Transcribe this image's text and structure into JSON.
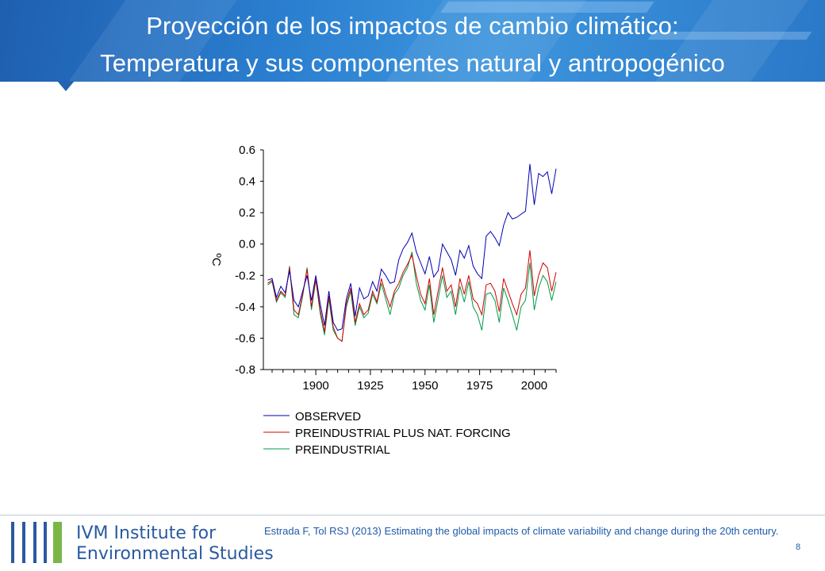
{
  "title": {
    "line1": "Proyección de los impactos de cambio climático:",
    "line2": "Temperatura y sus componentes natural y antropogénico"
  },
  "colors": {
    "header_blue": "#2b7fd0",
    "observed": "#0000b4",
    "natural": "#d40000",
    "preindustrial": "#009a44",
    "logo_green": "#7ab648",
    "text_blue": "#1e5aa8"
  },
  "chart_data": {
    "type": "line",
    "ylabel": "ºC",
    "xlabel": "",
    "title": "",
    "xlim": [
      1876,
      2010
    ],
    "ylim": [
      -0.8,
      0.6
    ],
    "yticks": [
      "0.6",
      "0.4",
      "0.2",
      "0.0",
      "-0.2",
      "-0.4",
      "-0.6",
      "-0.8"
    ],
    "xticks": [
      "1900",
      "1925",
      "1950",
      "1975",
      "2000"
    ],
    "legend_position": "bottom",
    "x": [
      1878,
      1880,
      1882,
      1884,
      1886,
      1888,
      1890,
      1892,
      1894,
      1896,
      1898,
      1900,
      1902,
      1904,
      1906,
      1908,
      1910,
      1912,
      1914,
      1916,
      1918,
      1920,
      1922,
      1924,
      1926,
      1928,
      1930,
      1932,
      1934,
      1936,
      1938,
      1940,
      1942,
      1944,
      1946,
      1948,
      1950,
      1952,
      1954,
      1956,
      1958,
      1960,
      1962,
      1964,
      1966,
      1968,
      1970,
      1972,
      1974,
      1976,
      1978,
      1980,
      1982,
      1984,
      1986,
      1988,
      1990,
      1992,
      1994,
      1996,
      1998,
      2000,
      2002,
      2004,
      2006,
      2008,
      2010
    ],
    "series": [
      {
        "name": "OBSERVED",
        "color": "#0000b4",
        "values": [
          -0.23,
          -0.22,
          -0.34,
          -0.27,
          -0.31,
          -0.17,
          -0.36,
          -0.4,
          -0.3,
          -0.2,
          -0.36,
          -0.2,
          -0.38,
          -0.52,
          -0.3,
          -0.5,
          -0.55,
          -0.54,
          -0.35,
          -0.25,
          -0.46,
          -0.28,
          -0.35,
          -0.33,
          -0.24,
          -0.3,
          -0.16,
          -0.2,
          -0.25,
          -0.24,
          -0.1,
          -0.03,
          0.01,
          0.07,
          -0.05,
          -0.12,
          -0.19,
          -0.08,
          -0.21,
          -0.17,
          0.0,
          -0.05,
          -0.1,
          -0.2,
          -0.04,
          -0.09,
          -0.01,
          -0.14,
          -0.19,
          -0.22,
          0.05,
          0.08,
          0.04,
          -0.01,
          0.12,
          0.2,
          0.16,
          0.17,
          0.19,
          0.21,
          0.51,
          0.25,
          0.45,
          0.43,
          0.46,
          0.32,
          0.48
        ]
      },
      {
        "name": "PREINDUSTRIAL PLUS NAT. FORCING",
        "color": "#d40000",
        "values": [
          -0.25,
          -0.23,
          -0.36,
          -0.3,
          -0.33,
          -0.15,
          -0.42,
          -0.45,
          -0.32,
          -0.16,
          -0.4,
          -0.22,
          -0.42,
          -0.56,
          -0.33,
          -0.53,
          -0.6,
          -0.62,
          -0.38,
          -0.28,
          -0.5,
          -0.38,
          -0.45,
          -0.42,
          -0.3,
          -0.37,
          -0.22,
          -0.32,
          -0.4,
          -0.3,
          -0.25,
          -0.18,
          -0.13,
          -0.07,
          -0.2,
          -0.32,
          -0.38,
          -0.22,
          -0.45,
          -0.3,
          -0.15,
          -0.3,
          -0.26,
          -0.4,
          -0.22,
          -0.32,
          -0.2,
          -0.35,
          -0.38,
          -0.45,
          -0.26,
          -0.25,
          -0.3,
          -0.43,
          -0.22,
          -0.3,
          -0.38,
          -0.45,
          -0.32,
          -0.28,
          -0.04,
          -0.33,
          -0.2,
          -0.12,
          -0.15,
          -0.3,
          -0.18
        ]
      },
      {
        "name": "PREINDUSTRIAL",
        "color": "#009a44",
        "values": [
          -0.26,
          -0.24,
          -0.37,
          -0.31,
          -0.34,
          -0.14,
          -0.45,
          -0.47,
          -0.33,
          -0.15,
          -0.42,
          -0.23,
          -0.44,
          -0.58,
          -0.35,
          -0.55,
          -0.6,
          -0.62,
          -0.4,
          -0.3,
          -0.52,
          -0.4,
          -0.47,
          -0.44,
          -0.32,
          -0.38,
          -0.25,
          -0.35,
          -0.45,
          -0.32,
          -0.28,
          -0.2,
          -0.15,
          -0.05,
          -0.25,
          -0.36,
          -0.42,
          -0.26,
          -0.5,
          -0.35,
          -0.2,
          -0.34,
          -0.3,
          -0.45,
          -0.27,
          -0.37,
          -0.24,
          -0.4,
          -0.45,
          -0.55,
          -0.32,
          -0.31,
          -0.36,
          -0.5,
          -0.28,
          -0.36,
          -0.45,
          -0.55,
          -0.4,
          -0.36,
          -0.12,
          -0.42,
          -0.28,
          -0.2,
          -0.24,
          -0.36,
          -0.24
        ]
      }
    ]
  },
  "logo": {
    "line1": "IVM Institute for",
    "line2": "Environmental Studies"
  },
  "citation": "Estrada F, Tol RSJ (2013) Estimating the global impacts of climate variability and change during the 20th century.",
  "page_number": "8"
}
